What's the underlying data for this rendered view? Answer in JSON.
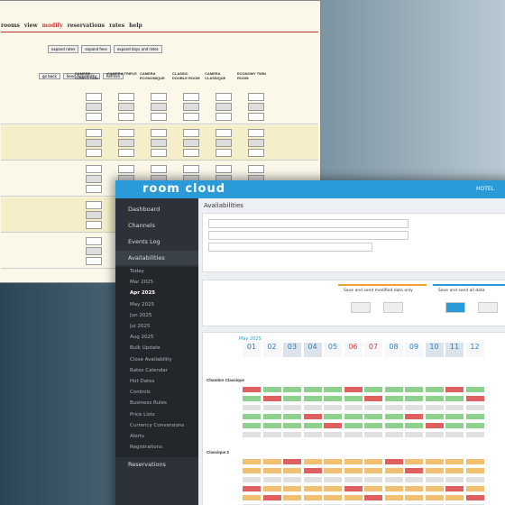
{
  "back_window": {
    "menu": [
      "rooms",
      "view",
      "modify",
      "reservations",
      "rates",
      "help"
    ],
    "tabs": [
      "expand rates",
      "expand fees",
      "expand days and rates"
    ],
    "buttons": [
      "go back",
      "Send Availability",
      "Refresh"
    ],
    "columns": [
      "CAMERE CONFLI-TION",
      "CAMERA TRIPLE",
      "CAMERA ECONOMIQUE",
      "CLASSIC DOUBLE ROOM",
      "CAMERA CLASSIQUE",
      "ECONOMY TWIN ROOM"
    ]
  },
  "front_window": {
    "logo": "room cloud",
    "header_right": "HOTEL",
    "page_title": "Availabilities",
    "sidebar": [
      "Dashboard",
      "Channels",
      "Events Log",
      "Availabilities"
    ],
    "submenu": [
      "Today",
      "Mar 2025",
      "Apr 2025",
      "May 2025",
      "Jun 2025",
      "Jul 2025",
      "Aug 2025",
      "Bulk Update",
      "Close Availability",
      "Rates Calendar",
      "Hot Dates",
      "Controls",
      "Business Rules",
      "Price Lists",
      "Currency Conversions",
      "Alerts",
      "Registrations"
    ],
    "sidebar_bottom": [
      "Reservations"
    ],
    "save_buttons": [
      "Save and send modified data only",
      "Save and send all data"
    ],
    "month": "May 2025",
    "dates": [
      "01",
      "02",
      "03",
      "04",
      "05",
      "06",
      "07",
      "08",
      "09",
      "10",
      "11",
      "12"
    ],
    "rooms": [
      "Chambre Classique",
      "Classique 2"
    ]
  }
}
